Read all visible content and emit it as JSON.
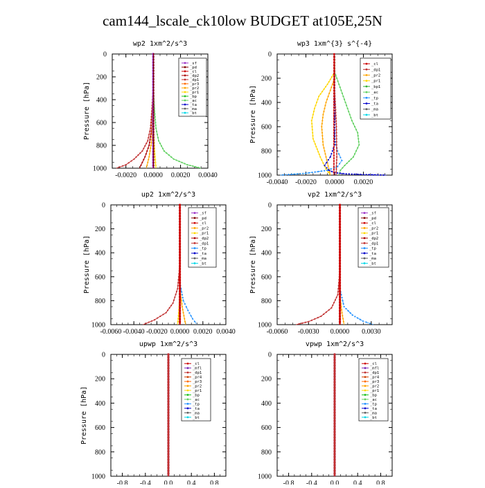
{
  "title": "cam144_lscale_ck10low  BUDGET at105E,25N",
  "colors": {
    "sf": "#9b30c8",
    "pd": "#800000",
    "cl": "#cc0000",
    "dp2": "#aa0000",
    "dp1": "#c03030",
    "pr3": "#ff6a00",
    "pr2": "#ffa500",
    "pr1": "#ffd700",
    "bp": "#20c020",
    "ac": "#60d060",
    "tp": "#2090ff",
    "ta": "#0000cc",
    "ma": "#606060",
    "bt": "#00d8e8",
    "mfl": "#7a2ab8",
    "pr4": "#d04000",
    "bp1": "#30b030"
  },
  "chart_data": [
    {
      "type": "line",
      "title": "wp2  1xm^2/s^3",
      "ylabel": "Pressure [hPa]",
      "xlim": [
        -0.003,
        0.004
      ],
      "xticks": [
        -0.002,
        0.0,
        0.002,
        0.004
      ],
      "xtick_labels": [
        "-0.0020",
        "0.0000",
        "0.0020",
        "0.0040"
      ],
      "ylim": [
        1000,
        0
      ],
      "yticks": [
        0,
        200,
        400,
        600,
        800,
        1000
      ],
      "ytick_labels": [
        "0",
        "200",
        "400",
        "600",
        "800",
        "1000"
      ],
      "legend": [
        "_sf",
        "_pd",
        "_cl",
        "_dp2",
        "_dp1",
        "_pr3",
        "_pr2",
        "_pr1",
        "_bp",
        "_ac",
        "_ta",
        "_ma",
        "_bt"
      ],
      "series": [
        {
          "name": "_ac",
          "x": [
            0,
            0,
            0.0001,
            0.0002,
            0.0004,
            0.0008,
            0.0015,
            0.0025,
            0.0035
          ],
          "y": [
            0,
            300,
            500,
            650,
            760,
            850,
            920,
            970,
            1000
          ]
        },
        {
          "name": "_dp1",
          "x": [
            0,
            0,
            -0.0001,
            -0.0002,
            -0.0004,
            -0.0008,
            -0.0014,
            -0.002,
            -0.0027
          ],
          "y": [
            0,
            300,
            500,
            650,
            760,
            850,
            920,
            970,
            1000
          ]
        },
        {
          "name": "_dp2",
          "x": [
            0,
            0,
            -0.0001,
            -0.0003,
            -0.0006,
            -0.001
          ],
          "y": [
            0,
            400,
            650,
            800,
            900,
            1000
          ]
        },
        {
          "name": "_pr2",
          "x": [
            0,
            0,
            -0.0001,
            -0.0003,
            -0.0005
          ],
          "y": [
            0,
            500,
            750,
            900,
            1000
          ]
        },
        {
          "name": "_pr1",
          "x": [
            0,
            0,
            0.0001,
            0.0002
          ],
          "y": [
            0,
            600,
            850,
            1000
          ]
        },
        {
          "name": "_sf",
          "x": [
            0,
            0
          ],
          "y": [
            0,
            1000
          ]
        },
        {
          "name": "_pd",
          "x": [
            3e-05,
            3e-05
          ],
          "y": [
            0,
            1000
          ]
        }
      ]
    },
    {
      "type": "line",
      "title": "wp3  1xm^{3} s^{-4}",
      "ylabel": "Pressure [hPa]",
      "xlim": [
        -0.004,
        0.004
      ],
      "xticks": [
        -0.004,
        -0.002,
        0.0,
        0.002
      ],
      "xtick_labels": [
        "-0.0040",
        "-0.0020",
        "0.0000",
        "0.0020"
      ],
      "ylim": [
        1000,
        0
      ],
      "yticks": [
        0,
        200,
        400,
        600,
        800,
        1000
      ],
      "ytick_labels": [
        "0",
        "200",
        "400",
        "600",
        "800",
        "1000"
      ],
      "legend": [
        "_cl",
        "_dp1",
        "_pr2",
        "_pr1",
        "_bp1",
        "_ac",
        "_tp",
        "_ta",
        "_ma",
        "_bt"
      ],
      "series": [
        {
          "name": "_ac",
          "x": [
            0,
            0,
            0.0003,
            0.0006,
            0.0009,
            0.0012,
            0.0016,
            0.0017,
            0.0013,
            0.0007,
            0.0004,
            0.0003
          ],
          "y": [
            0,
            150,
            250,
            350,
            450,
            550,
            650,
            750,
            850,
            920,
            960,
            1000
          ]
        },
        {
          "name": "_pr1",
          "x": [
            0,
            0,
            -0.0005,
            -0.0011,
            -0.0014,
            -0.0016,
            -0.0015,
            -0.001,
            -0.0006,
            -0.0003
          ],
          "y": [
            0,
            150,
            250,
            350,
            450,
            550,
            700,
            850,
            950,
            1000
          ]
        },
        {
          "name": "_pr2",
          "x": [
            0,
            0,
            -0.0003,
            -0.0006,
            -0.0008,
            -0.0009,
            -0.0008,
            -0.0005,
            -0.0003
          ],
          "y": [
            0,
            200,
            300,
            400,
            500,
            600,
            750,
            900,
            1000
          ]
        },
        {
          "name": "_tp",
          "x": [
            0,
            0,
            0.0002,
            0.0005,
            0.0002,
            -0.0005,
            -0.002,
            -0.0038
          ],
          "y": [
            0,
            700,
            800,
            880,
            930,
            960,
            985,
            1000
          ]
        },
        {
          "name": "_ta",
          "x": [
            0,
            0,
            -0.0003,
            -0.0007,
            -0.0004,
            0,
            0.0008,
            0.002,
            0.0036
          ],
          "y": [
            0,
            750,
            850,
            920,
            960,
            980,
            990,
            995,
            1000
          ]
        },
        {
          "name": "_dp1",
          "x": [
            0,
            0,
            0.00012,
            0.00015,
            0.0001
          ],
          "y": [
            0,
            300,
            600,
            850,
            1000
          ]
        },
        {
          "name": "_cl",
          "x": [
            -5e-05,
            -5e-05
          ],
          "y": [
            0,
            1000
          ]
        }
      ]
    },
    {
      "type": "line",
      "title": "up2  1xm^2/s^3",
      "ylabel": "Pressure [hPa]",
      "xlim": [
        -0.006,
        0.004
      ],
      "xticks": [
        -0.006,
        -0.004,
        -0.002,
        0.0,
        0.002,
        0.004
      ],
      "xtick_labels": [
        "-0.0060",
        "-0.0040",
        "-0.0020",
        "0.0000",
        "0.0020",
        "0.0040"
      ],
      "ylim": [
        1000,
        0
      ],
      "yticks": [
        0,
        200,
        400,
        600,
        800,
        1000
      ],
      "ytick_labels": [
        "0",
        "200",
        "400",
        "600",
        "800",
        "1000"
      ],
      "legend": [
        "_sf",
        "_pd",
        "_cl",
        "_pr2",
        "_pr1",
        "_dp2",
        "_dp1",
        "_tp",
        "_ta",
        "_ma",
        "_bt"
      ],
      "series": [
        {
          "name": "_dp1",
          "x": [
            0,
            0,
            -0.0002,
            -0.0006,
            -0.0012,
            -0.0022,
            -0.0032
          ],
          "y": [
            0,
            500,
            700,
            820,
            900,
            960,
            1000
          ]
        },
        {
          "name": "_tp",
          "x": [
            0,
            0,
            0.0003,
            0.0007,
            0.0011,
            0.0015
          ],
          "y": [
            0,
            650,
            800,
            880,
            950,
            1000
          ]
        },
        {
          "name": "_pr2",
          "x": [
            0,
            0,
            0.0002,
            0.0004,
            0.0005
          ],
          "y": [
            0,
            700,
            850,
            950,
            1000
          ]
        },
        {
          "name": "_pr1",
          "x": [
            0,
            0,
            -0.0001,
            -0.0002
          ],
          "y": [
            0,
            750,
            900,
            1000
          ]
        },
        {
          "name": "_cl",
          "x": [
            0,
            0
          ],
          "y": [
            0,
            1000
          ]
        }
      ]
    },
    {
      "type": "line",
      "title": "vp2  1xm^2/s^3",
      "ylabel": "Pressure [hPa]",
      "xlim": [
        -0.006,
        0.005
      ],
      "xticks": [
        -0.006,
        -0.003,
        0.0,
        0.003
      ],
      "xtick_labels": [
        "-0.0060",
        "-0.0030",
        "0.0000",
        "0.0030"
      ],
      "ylim": [
        1000,
        0
      ],
      "yticks": [
        0,
        200,
        400,
        600,
        800,
        1000
      ],
      "ytick_labels": [
        "0",
        "200",
        "400",
        "600",
        "800",
        "1000"
      ],
      "legend": [
        "_sf",
        "_pd",
        "_cl",
        "_pr2",
        "_pr1",
        "_dp2",
        "_dp1",
        "_tp",
        "_ta",
        "_ma",
        "_bt"
      ],
      "series": [
        {
          "name": "_dp1",
          "x": [
            0,
            0,
            -0.0002,
            -0.0008,
            -0.0018,
            -0.003,
            -0.0042
          ],
          "y": [
            0,
            550,
            750,
            860,
            930,
            975,
            1000
          ]
        },
        {
          "name": "_tp",
          "x": [
            0,
            0,
            0.0004,
            0.0012,
            0.0022,
            0.0032
          ],
          "y": [
            0,
            700,
            850,
            920,
            970,
            1000
          ]
        },
        {
          "name": "_pr2",
          "x": [
            0,
            0,
            0.0002,
            0.0004
          ],
          "y": [
            0,
            750,
            900,
            1000
          ]
        },
        {
          "name": "_cl",
          "x": [
            0,
            0
          ],
          "y": [
            0,
            1000
          ]
        }
      ]
    },
    {
      "type": "line",
      "title": "upwp  1xm^2/s^3",
      "ylabel": "Pressure [hPa]",
      "xlim": [
        -1.0,
        1.0
      ],
      "xticks": [
        -0.8,
        -0.4,
        0.0,
        0.4,
        0.8
      ],
      "xtick_labels": [
        "-0.8",
        "-0.4",
        "0.0",
        "0.4",
        "0.8"
      ],
      "ylim": [
        1000,
        0
      ],
      "yticks": [
        0,
        200,
        400,
        600,
        800,
        1000
      ],
      "ytick_labels": [
        "0",
        "200",
        "400",
        "600",
        "800",
        "1000"
      ],
      "legend": [
        "_cl",
        "_mfl",
        "_dp1",
        "_pr4",
        "_pr3",
        "_pr2",
        "_pr1",
        "_bp",
        "_ac",
        "_tp",
        "_ta",
        "_ma",
        "_bt"
      ],
      "series": [
        {
          "name": "_cl",
          "x": [
            0,
            0
          ],
          "y": [
            0,
            1000
          ]
        },
        {
          "name": "_mfl",
          "x": [
            0,
            0
          ],
          "y": [
            0,
            1000
          ]
        },
        {
          "name": "_dp1",
          "x": [
            0,
            0
          ],
          "y": [
            0,
            1000
          ]
        }
      ]
    },
    {
      "type": "line",
      "title": "vpwp  1xm^2/s^3",
      "ylabel": "",
      "xlim": [
        -1.0,
        1.0
      ],
      "xticks": [
        -0.8,
        -0.4,
        0.0,
        0.4,
        0.8
      ],
      "xtick_labels": [
        "-0.8",
        "-0.4",
        "0.0",
        "0.4",
        "0.8"
      ],
      "ylim": [
        1000,
        0
      ],
      "yticks": [
        0,
        200,
        400,
        600,
        800,
        1000
      ],
      "ytick_labels": [
        "0",
        "200",
        "400",
        "600",
        "800",
        "1000"
      ],
      "legend": [
        "_cl",
        "_mfl",
        "_dp1",
        "_pr4",
        "_pr3",
        "_pr2",
        "_pr1",
        "_bp",
        "_ac",
        "_tp",
        "_ta",
        "_ma",
        "_bt"
      ],
      "series": [
        {
          "name": "_cl",
          "x": [
            0,
            0
          ],
          "y": [
            0,
            1000
          ]
        },
        {
          "name": "_mfl",
          "x": [
            0,
            0
          ],
          "y": [
            0,
            1000
          ]
        },
        {
          "name": "_dp1",
          "x": [
            0,
            0
          ],
          "y": [
            0,
            1000
          ]
        }
      ]
    }
  ]
}
